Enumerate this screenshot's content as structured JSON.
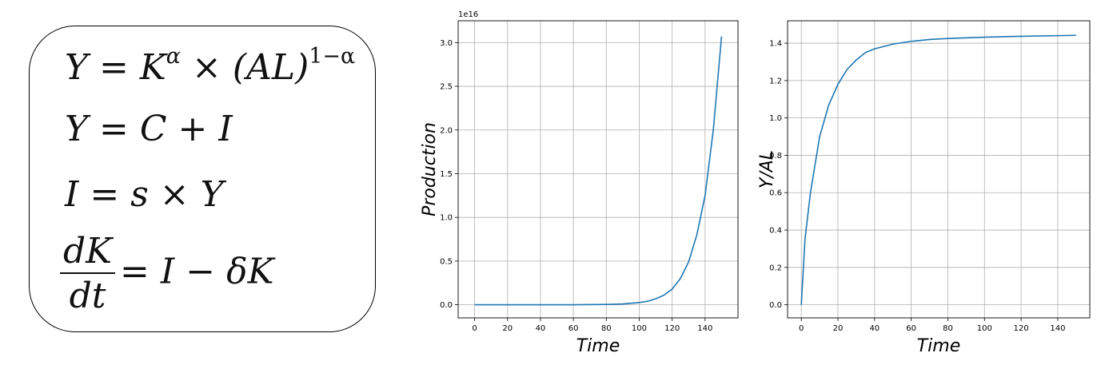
{
  "equations": {
    "eq1": {
      "Y": "Y",
      "eq": "=",
      "K": "K",
      "alpha": "α",
      "times": "×",
      "AL": "(AL)",
      "exp": "1−α"
    },
    "eq2": "Y = C + I",
    "eq3": "I = s × Y",
    "eq4": {
      "num": "dK",
      "den": "dt",
      "rhs": "= I − δK"
    }
  },
  "chart_data": [
    {
      "type": "line",
      "xlabel": "Time",
      "ylabel": "Production",
      "xlim": [
        -10,
        160
      ],
      "ylim": [
        -0.15,
        3.25
      ],
      "y_offset_label": "1e16",
      "x_ticks": [
        0,
        20,
        40,
        60,
        80,
        100,
        120,
        140
      ],
      "y_ticks": [
        0.0,
        0.5,
        1.0,
        1.5,
        2.0,
        2.5,
        3.0
      ],
      "grid": true,
      "color": "#1f77b4",
      "series": [
        {
          "x": [
            0,
            20,
            40,
            60,
            80,
            90,
            100,
            105,
            110,
            115,
            120,
            125,
            130,
            135,
            140,
            145,
            150
          ],
          "values": [
            0,
            0,
            0,
            0.0005,
            0.004,
            0.009,
            0.025,
            0.04,
            0.068,
            0.11,
            0.18,
            0.3,
            0.49,
            0.8,
            1.25,
            2.0,
            3.07
          ]
        }
      ]
    },
    {
      "type": "line",
      "xlabel": "Time",
      "ylabel": "Y/AL",
      "xlim": [
        -7.5,
        157.5
      ],
      "ylim": [
        -0.07,
        1.52
      ],
      "x_ticks": [
        0,
        20,
        40,
        60,
        80,
        100,
        120,
        140
      ],
      "y_ticks": [
        0.0,
        0.2,
        0.4,
        0.6,
        0.8,
        1.0,
        1.2,
        1.4
      ],
      "grid": true,
      "color": "#1f77b4",
      "series": [
        {
          "x": [
            0,
            2,
            5,
            10,
            15,
            20,
            25,
            30,
            35,
            40,
            50,
            60,
            70,
            80,
            100,
            120,
            150
          ],
          "values": [
            0,
            0.35,
            0.6,
            0.9,
            1.07,
            1.18,
            1.26,
            1.31,
            1.35,
            1.37,
            1.395,
            1.41,
            1.42,
            1.425,
            1.432,
            1.437,
            1.442
          ]
        }
      ]
    }
  ]
}
